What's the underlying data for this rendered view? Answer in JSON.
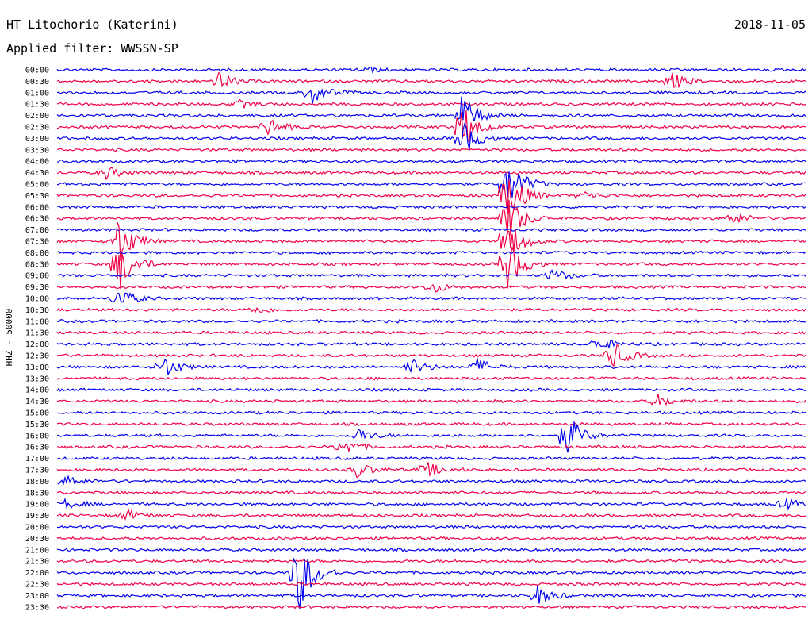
{
  "header": {
    "station": "HT Litochorio (Katerini)",
    "date": "2018-11-05",
    "filter": "Applied filter: WWSSN-SP"
  },
  "axis": {
    "channel_label": "HHZ - 50000"
  },
  "colors": {
    "trace_a": "#0000ee",
    "trace_b": "#ee0044"
  },
  "chart_data": {
    "type": "line",
    "title": "HT Litochorio (Katerini)",
    "subtitle": "Applied filter: WWSSN-SP",
    "ylabel": "HHZ - 50000",
    "xlabel": "",
    "row_labels": [
      "00:00",
      "00:30",
      "01:00",
      "01:30",
      "02:00",
      "02:30",
      "03:00",
      "03:30",
      "04:00",
      "04:30",
      "05:00",
      "05:30",
      "06:00",
      "06:30",
      "07:00",
      "07:30",
      "08:00",
      "08:30",
      "09:00",
      "09:30",
      "10:00",
      "10:30",
      "11:00",
      "11:30",
      "12:00",
      "12:30",
      "13:00",
      "13:30",
      "14:00",
      "14:30",
      "15:00",
      "15:30",
      "16:00",
      "16:30",
      "17:00",
      "17:30",
      "18:00",
      "18:30",
      "19:00",
      "19:30",
      "20:00",
      "20:30",
      "21:00",
      "21:30",
      "22:00",
      "22:30",
      "23:00",
      "23:30"
    ],
    "row_colors": [
      "blue",
      "red"
    ],
    "events": [
      {
        "row": 0,
        "x": 0.41,
        "amp": 0.4
      },
      {
        "row": 1,
        "x": 0.215,
        "amp": 1.2
      },
      {
        "row": 1,
        "x": 0.82,
        "amp": 1.1
      },
      {
        "row": 2,
        "x": 0.34,
        "amp": 1.5
      },
      {
        "row": 3,
        "x": 0.24,
        "amp": 0.6
      },
      {
        "row": 4,
        "x": 0.54,
        "amp": 3.0
      },
      {
        "row": 5,
        "x": 0.28,
        "amp": 1.4
      },
      {
        "row": 5,
        "x": 0.54,
        "amp": 3.5
      },
      {
        "row": 6,
        "x": 0.54,
        "amp": 2.5
      },
      {
        "row": 9,
        "x": 0.065,
        "amp": 0.8
      },
      {
        "row": 10,
        "x": 0.6,
        "amp": 4.0
      },
      {
        "row": 11,
        "x": 0.6,
        "amp": 4.0
      },
      {
        "row": 11,
        "x": 0.7,
        "amp": 0.6
      },
      {
        "row": 13,
        "x": 0.6,
        "amp": 3.5
      },
      {
        "row": 13,
        "x": 0.9,
        "amp": 1.0
      },
      {
        "row": 15,
        "x": 0.08,
        "amp": 3.5
      },
      {
        "row": 15,
        "x": 0.6,
        "amp": 3.0
      },
      {
        "row": 17,
        "x": 0.08,
        "amp": 4.0
      },
      {
        "row": 17,
        "x": 0.6,
        "amp": 3.5
      },
      {
        "row": 18,
        "x": 0.66,
        "amp": 0.9
      },
      {
        "row": 19,
        "x": 0.5,
        "amp": 0.8
      },
      {
        "row": 20,
        "x": 0.08,
        "amp": 1.5
      },
      {
        "row": 21,
        "x": 0.26,
        "amp": 0.6
      },
      {
        "row": 24,
        "x": 0.72,
        "amp": 1.0
      },
      {
        "row": 25,
        "x": 0.74,
        "amp": 2.0
      },
      {
        "row": 26,
        "x": 0.14,
        "amp": 1.6
      },
      {
        "row": 26,
        "x": 0.47,
        "amp": 1.2
      },
      {
        "row": 26,
        "x": 0.56,
        "amp": 1.1
      },
      {
        "row": 29,
        "x": 0.8,
        "amp": 0.9
      },
      {
        "row": 32,
        "x": 0.4,
        "amp": 1.0
      },
      {
        "row": 32,
        "x": 0.68,
        "amp": 3.0
      },
      {
        "row": 33,
        "x": 0.38,
        "amp": 1.2
      },
      {
        "row": 35,
        "x": 0.4,
        "amp": 1.0
      },
      {
        "row": 35,
        "x": 0.49,
        "amp": 1.2
      },
      {
        "row": 36,
        "x": 0.01,
        "amp": 0.8
      },
      {
        "row": 38,
        "x": 0.01,
        "amp": 0.6
      },
      {
        "row": 38,
        "x": 0.97,
        "amp": 0.8
      },
      {
        "row": 39,
        "x": 0.09,
        "amp": 0.8
      },
      {
        "row": 44,
        "x": 0.32,
        "amp": 6.0
      },
      {
        "row": 46,
        "x": 0.64,
        "amp": 1.4
      }
    ]
  }
}
